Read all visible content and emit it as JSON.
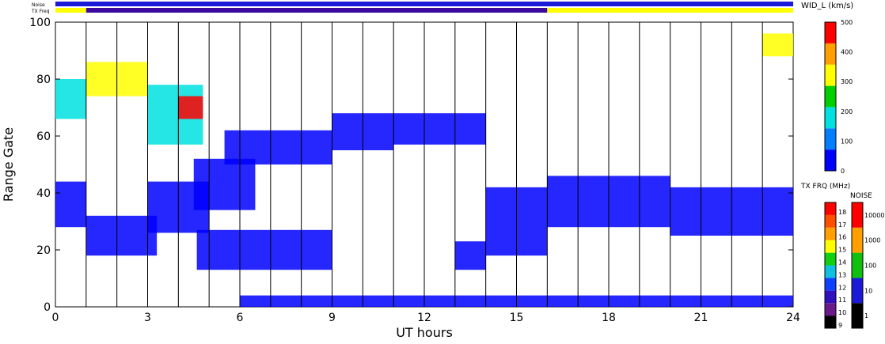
{
  "chart_data": {
    "type": "heatmap",
    "parameter_label": "WID_L (km/s)",
    "xlabel": "UT hours",
    "ylabel": "Range Gate",
    "xlim": [
      0,
      24
    ],
    "ylim": [
      0,
      100
    ],
    "x_ticks": [
      0,
      3,
      6,
      9,
      12,
      15,
      18,
      21,
      24
    ],
    "y_ticks": [
      0,
      20,
      40,
      60,
      80,
      100
    ],
    "hour_gridlines": [
      1,
      2,
      3,
      4,
      5,
      6,
      7,
      8,
      9,
      10,
      11,
      12,
      13,
      14,
      15,
      16,
      17,
      18,
      19,
      20,
      21,
      22,
      23
    ],
    "top_strips": [
      {
        "label": "Noise",
        "segments": [
          {
            "start": 0,
            "end": 24,
            "color": "#1a1ad8"
          }
        ]
      },
      {
        "label": "TX Freq",
        "segments": [
          {
            "start": 0,
            "end": 1,
            "color": "#ffff00"
          },
          {
            "start": 1,
            "end": 16,
            "color": "#3a0aa0"
          },
          {
            "start": 16,
            "end": 24,
            "color": "#ffff00"
          }
        ]
      }
    ],
    "colorbar_width": {
      "label": "WID_L (km/s)",
      "ticks": [
        0,
        100,
        200,
        300,
        400,
        500
      ],
      "range": [
        0,
        500
      ],
      "colors": [
        "#0000ff",
        "#0080ff",
        "#00e0e0",
        "#00d000",
        "#ffff00",
        "#ffa000",
        "#ff0000"
      ]
    },
    "colorbar_freq": {
      "label": "TX FRQ (MHz)",
      "ticks": [
        9,
        10,
        11,
        12,
        13,
        14,
        15,
        16,
        17,
        18
      ],
      "colors": [
        "#000000",
        "#6a1a8a",
        "#3010c0",
        "#1040ff",
        "#10c0e0",
        "#10d010",
        "#ffff00",
        "#ffa000",
        "#ff5000",
        "#ff0000"
      ]
    },
    "colorbar_noise": {
      "label": "NOISE",
      "ticks": [
        "1",
        "10",
        "100",
        "1000",
        "10000"
      ],
      "colors": [
        "#000000",
        "#1a1ad8",
        "#10c010",
        "#ffa000",
        "#ff0000"
      ]
    },
    "echo_regions": [
      {
        "t0": 0.0,
        "t1": 1.0,
        "g0": 28,
        "g1": 44,
        "value": 60
      },
      {
        "t0": 1.0,
        "t1": 3.3,
        "g0": 18,
        "g1": 32,
        "value": 60
      },
      {
        "t0": 3.0,
        "t1": 5.0,
        "g0": 26,
        "g1": 44,
        "value": 70
      },
      {
        "t0": 4.5,
        "t1": 6.5,
        "g0": 34,
        "g1": 52,
        "value": 60
      },
      {
        "t0": 4.6,
        "t1": 9.0,
        "g0": 13,
        "g1": 27,
        "value": 50
      },
      {
        "t0": 5.5,
        "t1": 9.0,
        "g0": 50,
        "g1": 62,
        "value": 70
      },
      {
        "t0": 9.0,
        "t1": 11.0,
        "g0": 55,
        "g1": 68,
        "value": 70
      },
      {
        "t0": 11.0,
        "t1": 14.0,
        "g0": 57,
        "g1": 68,
        "value": 70
      },
      {
        "t0": 13.0,
        "t1": 14.0,
        "g0": 13,
        "g1": 23,
        "value": 60
      },
      {
        "t0": 14.0,
        "t1": 16.0,
        "g0": 18,
        "g1": 42,
        "value": 60
      },
      {
        "t0": 16.0,
        "t1": 20.0,
        "g0": 28,
        "g1": 46,
        "value": 60
      },
      {
        "t0": 20.0,
        "t1": 24.0,
        "g0": 25,
        "g1": 42,
        "value": 60
      },
      {
        "t0": 1.0,
        "t1": 3.0,
        "g0": 74,
        "g1": 86,
        "value": 330
      },
      {
        "t0": 3.0,
        "t1": 4.8,
        "g0": 57,
        "g1": 78,
        "value": 160
      },
      {
        "t0": 4.0,
        "t1": 4.8,
        "g0": 66,
        "g1": 74,
        "value": 470
      },
      {
        "t0": 6.0,
        "t1": 24.0,
        "g0": 0,
        "g1": 4,
        "value": 60
      },
      {
        "t0": 0.0,
        "t1": 1.0,
        "g0": 66,
        "g1": 80,
        "value": 170
      },
      {
        "t0": 23.0,
        "t1": 24.0,
        "g0": 88,
        "g1": 96,
        "value": 300
      }
    ]
  }
}
